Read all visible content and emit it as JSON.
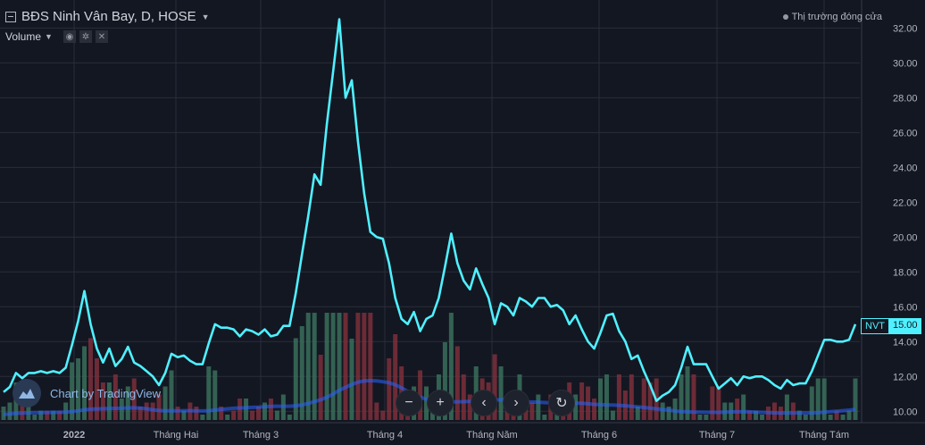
{
  "header": {
    "title": "BĐS Ninh Vân Bay, D, HOSE",
    "volume_label": "Volume",
    "market_status": "Thị trường đóng cửa"
  },
  "watermark": "Chart by TradingView",
  "price_badge": {
    "symbol": "NVT",
    "value": "15.00"
  },
  "colors": {
    "line": "#4ff0ff",
    "background": "#131722",
    "vol_up": "#3a6e5a",
    "vol_down": "#7c2f3a",
    "vol_ma": "#2962ff"
  },
  "chart_data": {
    "type": "line",
    "series": [
      {
        "values": [
          11.1,
          11.4,
          12.2,
          11.9,
          12.2,
          12.2,
          12.3,
          12.2,
          12.3,
          12.2,
          12.5,
          13.8,
          15.2,
          16.9,
          15.0,
          13.6,
          12.8,
          13.6,
          12.6,
          13.0,
          13.7,
          12.8,
          12.6,
          12.3,
          12.0,
          11.5,
          12.2,
          13.3,
          13.1,
          13.2,
          12.9,
          12.7,
          12.7,
          13.9,
          15.0,
          14.8,
          14.8,
          14.7,
          14.3,
          14.7,
          14.6,
          14.4,
          14.7,
          14.3,
          14.4,
          14.9,
          14.9,
          16.8,
          19.0,
          21.2,
          23.6,
          23.0,
          26.5,
          29.5,
          32.5,
          28.0,
          29.0,
          25.5,
          22.5,
          20.3,
          20.0,
          19.9,
          18.5,
          16.5,
          15.3,
          15.0,
          15.7,
          14.6,
          15.3,
          15.5,
          16.5,
          18.3,
          20.2,
          18.5,
          17.5,
          17.0,
          18.2,
          17.3,
          16.5,
          15.0,
          16.2,
          16.0,
          15.5,
          16.5,
          16.3,
          16.0,
          16.5,
          16.5,
          16.0,
          16.1,
          15.8,
          15.0,
          15.5,
          14.7,
          14.0,
          13.6,
          14.5,
          15.5,
          15.6,
          14.6,
          14.0,
          13.0,
          13.2,
          12.3,
          11.5,
          10.6,
          10.9,
          11.1,
          11.5,
          12.5,
          13.7,
          12.7,
          12.7,
          12.7,
          12.0,
          11.3,
          11.6,
          11.9,
          11.5,
          12.0,
          11.9,
          12.0,
          12.0,
          11.8,
          11.5,
          11.3,
          11.8,
          11.5,
          11.6,
          11.6,
          12.3,
          13.2,
          14.1,
          14.1,
          14.0,
          14.0,
          14.1,
          15.0
        ]
      }
    ],
    "ylim": [
      9.5,
      33.2
    ],
    "yticks": [
      "32.00",
      "30.00",
      "28.00",
      "26.00",
      "24.00",
      "22.00",
      "20.00",
      "18.00",
      "16.00",
      "14.00",
      "12.00",
      "10.00"
    ],
    "xticks": [
      "2022",
      "Tháng Hai",
      "Tháng 3",
      "Tháng 4",
      "Tháng Năm",
      "Tháng 6",
      "Tháng 7",
      "Tháng Tám"
    ],
    "grid": true
  }
}
